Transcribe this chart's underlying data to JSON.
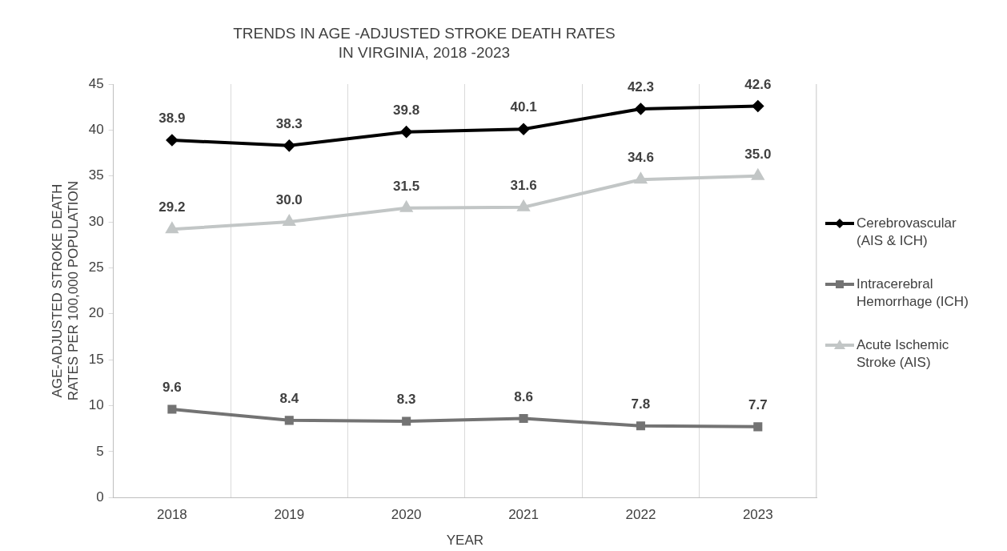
{
  "chart_data": {
    "type": "line",
    "title": "TRENDS IN AGE -ADJUSTED STROKE DEATH RATES\nIN VIRGINIA, 2018 -2023",
    "xlabel": "YEAR",
    "ylabel": "AGE-ADJUSTED STROKE DEATH\nRATES PER 100,000 POPULATION",
    "categories": [
      "2018",
      "2019",
      "2020",
      "2021",
      "2022",
      "2023"
    ],
    "series": [
      {
        "name": "Cerebrovascular (AIS & ICH)",
        "color": "#000000",
        "marker": "diamond",
        "values": [
          38.9,
          38.3,
          39.8,
          40.1,
          42.3,
          42.6
        ],
        "value_labels": [
          "38.9",
          "38.3",
          "39.8",
          "40.1",
          "42.3",
          "42.6"
        ]
      },
      {
        "name": "Intracerebral Hemorrhage (ICH)",
        "color": "#737373",
        "marker": "square",
        "values": [
          9.6,
          8.4,
          8.3,
          8.6,
          7.8,
          7.7
        ],
        "value_labels": [
          "9.6",
          "8.4",
          "8.3",
          "8.6",
          "7.8",
          "7.7"
        ]
      },
      {
        "name": "Acute Ischemic Stroke (AIS)",
        "color": "#c2c6c6",
        "marker": "triangle",
        "values": [
          29.2,
          30.0,
          31.5,
          31.6,
          34.6,
          35.0
        ],
        "value_labels": [
          "29.2",
          "30.0",
          "31.5",
          "31.6",
          "34.6",
          "35.0"
        ]
      }
    ],
    "ylim": [
      0,
      45
    ],
    "yticks": [
      0,
      5,
      10,
      15,
      20,
      25,
      30,
      35,
      40,
      45
    ],
    "grid": "x",
    "legend": "right"
  }
}
